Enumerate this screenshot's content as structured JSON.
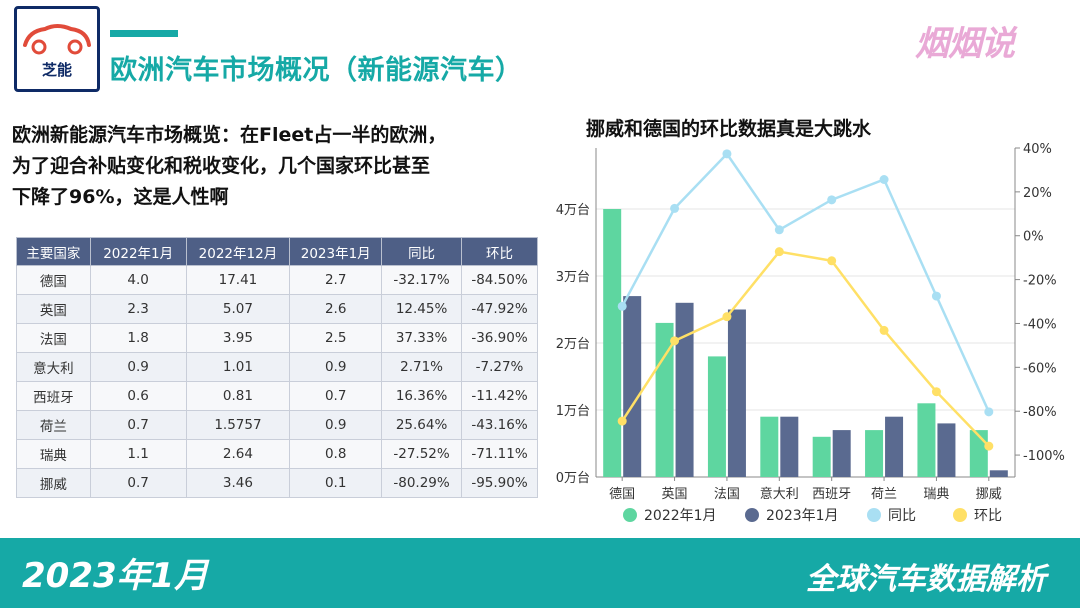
{
  "header": {
    "logo_text": "芝能",
    "title": "欧洲汽车市场概况（新能源汽车）",
    "brand": "烟烟说"
  },
  "intro": {
    "lines": [
      "欧洲新能源汽车市场概览：在Fleet占一半的欧洲，",
      "为了迎合补贴变化和税收变化，几个国家环比甚至",
      "下降了96%，这是人性啊"
    ]
  },
  "table": {
    "headers": [
      "主要国家",
      "2022年1月",
      "2022年12月",
      "2023年1月",
      "同比",
      "环比"
    ],
    "rows": [
      [
        "德国",
        "4.0",
        "17.41",
        "2.7",
        "-32.17%",
        "-84.50%"
      ],
      [
        "英国",
        "2.3",
        "5.07",
        "2.6",
        "12.45%",
        "-47.92%"
      ],
      [
        "法国",
        "1.8",
        "3.95",
        "2.5",
        "37.33%",
        "-36.90%"
      ],
      [
        "意大利",
        "0.9",
        "1.01",
        "0.9",
        "2.71%",
        "-7.27%"
      ],
      [
        "西班牙",
        "0.6",
        "0.81",
        "0.7",
        "16.36%",
        "-11.42%"
      ],
      [
        "荷兰",
        "0.7",
        "1.5757",
        "0.9",
        "25.64%",
        "-43.16%"
      ],
      [
        "瑞典",
        "1.1",
        "2.64",
        "0.8",
        "-27.52%",
        "-71.11%"
      ],
      [
        "挪威",
        "0.7",
        "3.46",
        "0.1",
        "-80.29%",
        "-95.90%"
      ]
    ]
  },
  "chart_data": {
    "type": "bar",
    "title": "挪威和德国的环比数据真是大跳水",
    "categories": [
      "德国",
      "英国",
      "法国",
      "意大利",
      "西班牙",
      "荷兰",
      "瑞典",
      "挪威"
    ],
    "bar_series": [
      {
        "name": "2022年1月",
        "color": "#5ed6a0",
        "values": [
          4.0,
          2.3,
          1.8,
          0.9,
          0.6,
          0.7,
          1.1,
          0.7
        ]
      },
      {
        "name": "2023年1月",
        "color": "#5a6a90",
        "values": [
          2.7,
          2.6,
          2.5,
          0.9,
          0.7,
          0.9,
          0.8,
          0.1
        ]
      }
    ],
    "line_series": [
      {
        "name": "同比",
        "color": "#a9dff3",
        "values": [
          -32.17,
          12.45,
          37.33,
          2.71,
          16.36,
          25.64,
          -27.52,
          -80.29
        ]
      },
      {
        "name": "环比",
        "color": "#ffe066",
        "values": [
          -84.5,
          -47.92,
          -36.9,
          -7.27,
          -11.42,
          -43.16,
          -71.11,
          -95.9
        ]
      }
    ],
    "y_left": {
      "min": 0,
      "max": 4,
      "ticks": [
        "0万台",
        "1万台",
        "2万台",
        "3万台",
        "4万台"
      ]
    },
    "y_right": {
      "min": -110,
      "max": 40,
      "ticks": [
        "-100%",
        "-80%",
        "-60%",
        "-40%",
        "-20%",
        "0%",
        "20%",
        "40%"
      ]
    },
    "legend_position": "bottom"
  },
  "footer": {
    "left": "2023年1月",
    "right": "全球汽车数据解析"
  }
}
